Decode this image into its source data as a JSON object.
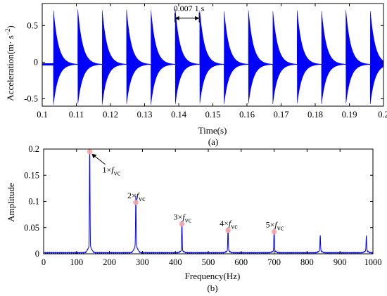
{
  "chart_data": [
    {
      "type": "line",
      "panel_label": "(a)",
      "xlabel": "Time(s)",
      "ylabel": "Acceleration(m·s⁻²)",
      "ylabel_base": "Acceleration(m· s",
      "ylabel_sup": "−2",
      "ylabel_end": ")",
      "xlim": [
        0.1,
        0.2
      ],
      "ylim": [
        -0.6,
        0.8
      ],
      "xticks": [
        "0.1",
        "0.11",
        "0.12",
        "0.13",
        "0.14",
        "0.15",
        "0.16",
        "0.17",
        "0.18",
        "0.19",
        "0.2"
      ],
      "yticks": [
        "-0.5",
        "0",
        "0.5"
      ],
      "series": [
        {
          "color": "#0000ff",
          "signal": "repeating decaying oscillatory impulses",
          "impulse_period_s": 0.00714,
          "first_impulse_s": 0.1033,
          "peak_positive": 0.75,
          "peak_negative": -0.55,
          "baseline": -0.03
        }
      ],
      "annotation": {
        "text": "0.007 1 s",
        "x_from": 0.1389,
        "x_to": 0.146,
        "y": 0.6
      },
      "grid": false,
      "legend": "none"
    },
    {
      "type": "line",
      "panel_label": "(b)",
      "xlabel": "Frequency(Hz)",
      "ylabel": "Amplitude",
      "xlim": [
        0,
        1000
      ],
      "ylim": [
        0,
        0.2
      ],
      "xticks": [
        "0",
        "100",
        "200",
        "300",
        "400",
        "500",
        "600",
        "700",
        "800",
        "900",
        "1000"
      ],
      "yticks": [
        "0",
        "0.05",
        "0.1",
        "0.15",
        "0.2"
      ],
      "series": [
        {
          "color": "#0000ff",
          "peaks": [
            {
              "x": 140,
              "y": 0.195
            },
            {
              "x": 280,
              "y": 0.098
            },
            {
              "x": 420,
              "y": 0.057
            },
            {
              "x": 560,
              "y": 0.045
            },
            {
              "x": 700,
              "y": 0.042
            },
            {
              "x": 840,
              "y": 0.03
            },
            {
              "x": 980,
              "y": 0.029
            }
          ]
        }
      ],
      "markers": [
        {
          "x": 140,
          "y": 0.195,
          "color": "#f4a6a6"
        },
        {
          "x": 280,
          "y": 0.098,
          "color": "#f4a6a6"
        },
        {
          "x": 420,
          "y": 0.057,
          "color": "#f4a6a6"
        },
        {
          "x": 560,
          "y": 0.045,
          "color": "#f4a6a6"
        },
        {
          "x": 700,
          "y": 0.042,
          "color": "#f4a6a6"
        }
      ],
      "annotations": [
        {
          "text": "1×",
          "fsym": "f",
          "sub": "vc",
          "x": 140,
          "y": 0.195,
          "arrow": true
        },
        {
          "text": "2×",
          "fsym": "f",
          "sub": "vc",
          "x": 280,
          "y": 0.098
        },
        {
          "text": "3×",
          "fsym": "f",
          "sub": "vc",
          "x": 420,
          "y": 0.057
        },
        {
          "text": "4×",
          "fsym": "f",
          "sub": "vc",
          "x": 560,
          "y": 0.045
        },
        {
          "text": "5×",
          "fsym": "f",
          "sub": "vc",
          "x": 700,
          "y": 0.042
        }
      ],
      "grid": false,
      "legend": "none"
    }
  ]
}
